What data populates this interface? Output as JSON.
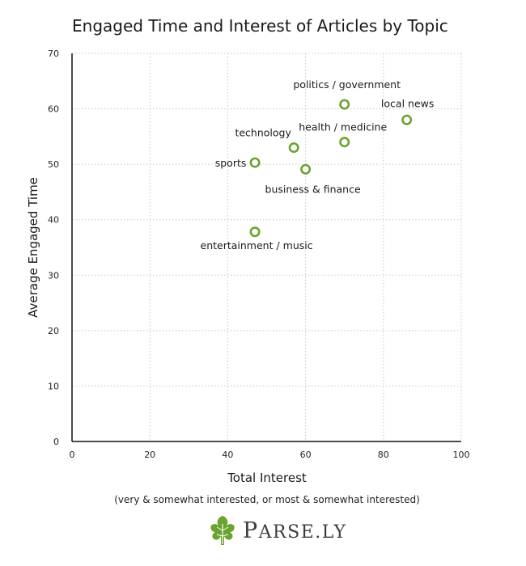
{
  "chart_data": {
    "type": "scatter",
    "title": "Engaged Time and Interest of Articles by Topic",
    "xlabel": "Total Interest",
    "ylabel": "Average Engaged Time",
    "subtitle": "(very & somewhat interested, or most & somewhat interested)",
    "xlim": [
      0,
      100
    ],
    "ylim": [
      0,
      70
    ],
    "xticks": [
      0,
      20,
      40,
      60,
      80,
      100
    ],
    "yticks": [
      0,
      10,
      20,
      30,
      40,
      50,
      60,
      70
    ],
    "grid": true,
    "points": [
      {
        "label": "politics / government",
        "x": 70,
        "y": 60.8
      },
      {
        "label": "local news",
        "x": 86,
        "y": 58
      },
      {
        "label": "health / medicine",
        "x": 70,
        "y": 54
      },
      {
        "label": "technology",
        "x": 57,
        "y": 53
      },
      {
        "label": "sports",
        "x": 47,
        "y": 50.3
      },
      {
        "label": "business & finance",
        "x": 60,
        "y": 49.1
      },
      {
        "label": "entertainment / music",
        "x": 47,
        "y": 37.8
      }
    ],
    "marker_color": "#6aa32e"
  },
  "brand": {
    "name_first": "P",
    "name_rest": "ARSE.LY",
    "logo_icon": "parsley-leaf-icon",
    "logo_color": "#6aa32e"
  }
}
